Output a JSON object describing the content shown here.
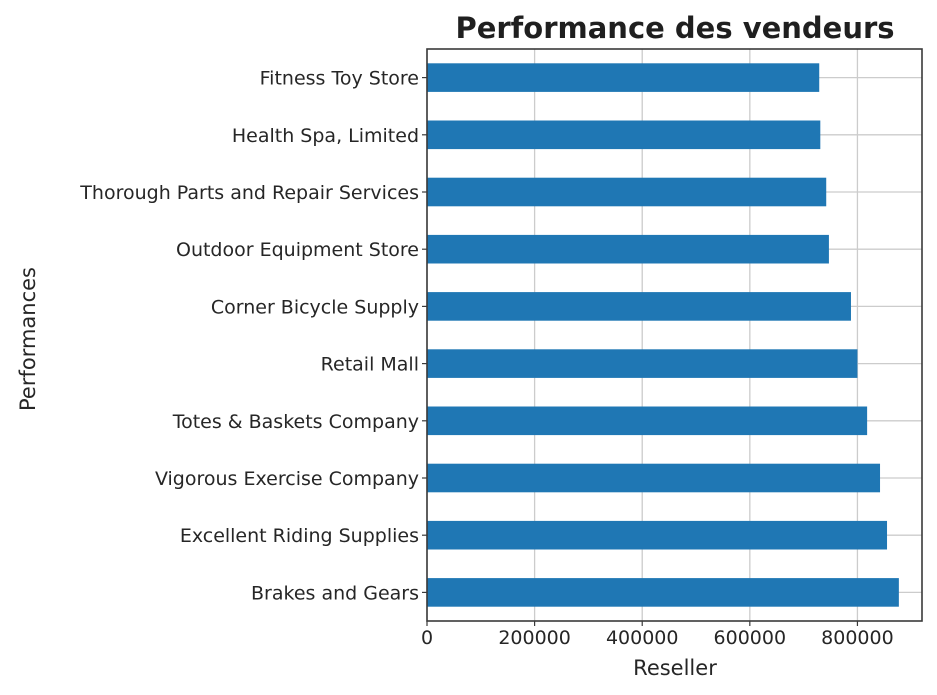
{
  "chart_data": {
    "type": "bar",
    "orientation": "horizontal",
    "title": "Performance des vendeurs",
    "xlabel": "Reseller",
    "ylabel": "Performances",
    "categories": [
      "Fitness Toy Store",
      "Health Spa, Limited",
      "Thorough Parts and Repair Services",
      "Outdoor Equipment Store",
      "Corner Bicycle Supply",
      "Retail Mall",
      "Totes & Baskets Company",
      "Vigorous Exercise Company",
      "Excellent Riding Supplies",
      "Brakes and Gears"
    ],
    "values": [
      729000,
      731000,
      742000,
      747000,
      788000,
      800000,
      818000,
      842000,
      855000,
      877000
    ],
    "xlim": [
      0,
      920000
    ],
    "xticks": [
      0,
      200000,
      400000,
      600000,
      800000
    ],
    "xtick_labels": [
      "0",
      "200000",
      "400000",
      "600000",
      "800000"
    ],
    "grid": true,
    "bar_color": "#1f77b4"
  }
}
